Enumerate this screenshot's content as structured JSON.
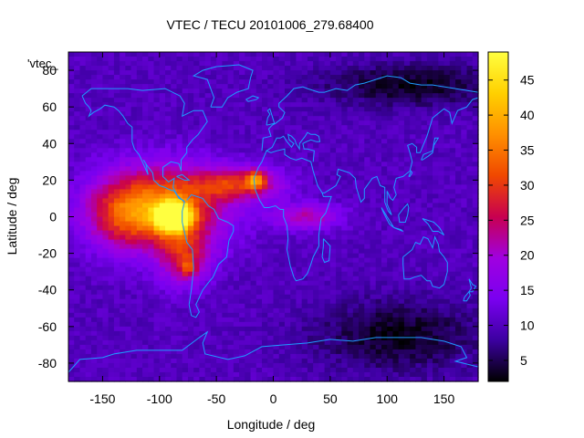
{
  "chart_data": {
    "type": "heatmap",
    "title": "VTEC / TECU 20101006_279.68400",
    "xlabel": "Longitude / deg",
    "ylabel": "Latitude / deg",
    "legend_label": "'vtec_",
    "legend_position": "top-left",
    "xlim": [
      -180,
      180
    ],
    "ylim": [
      -90,
      90
    ],
    "xticks": [
      -150,
      -100,
      -50,
      0,
      50,
      100,
      150
    ],
    "yticks": [
      -80,
      -60,
      -40,
      -20,
      0,
      20,
      40,
      60,
      80
    ],
    "colorbar": {
      "range": [
        2,
        49
      ],
      "ticks": [
        5,
        10,
        15,
        20,
        25,
        30,
        35,
        40,
        45
      ],
      "palette": [
        "#000000",
        "#3c00a0",
        "#7a00f0",
        "#a000e0",
        "#c80050",
        "#f04800",
        "#ff9000",
        "#ffd000",
        "#ffff40"
      ]
    },
    "grid": {
      "lon_step": 5,
      "lat_step": 2.5,
      "background": 10,
      "features": [
        {
          "name": "south-america-core-peak",
          "lon": -88,
          "lat": 0,
          "peak": 47,
          "rx": 14,
          "ry": 7
        },
        {
          "name": "south-america-crest",
          "lon": -100,
          "lat": 5,
          "peak": 26,
          "rx": 55,
          "ry": 22
        },
        {
          "name": "southern-arm",
          "lon": -78,
          "lat": -22,
          "peak": 14,
          "rx": 22,
          "ry": 16
        },
        {
          "name": "south-cone-spot",
          "lon": -75,
          "lat": -28,
          "peak": 8,
          "rx": 8,
          "ry": 5
        },
        {
          "name": "atlantic-band",
          "lon": -30,
          "lat": 18,
          "peak": 17,
          "rx": 38,
          "ry": 9
        },
        {
          "name": "west-africa-spot",
          "lon": -15,
          "lat": 20,
          "peak": 15,
          "rx": 8,
          "ry": 5
        },
        {
          "name": "africa-equator-tail",
          "lon": 30,
          "lat": 0,
          "peak": 12,
          "rx": 30,
          "ry": 7
        },
        {
          "name": "pacific-extension",
          "lon": -135,
          "lat": 0,
          "peak": 8,
          "rx": 30,
          "ry": 18
        },
        {
          "name": "polar-north-depression",
          "lon": 120,
          "lat": 72,
          "peak": -7,
          "rx": 80,
          "ry": 12
        },
        {
          "name": "polar-south-depression",
          "lon": 110,
          "lat": -65,
          "peak": -7,
          "rx": 75,
          "ry": 20
        }
      ]
    }
  }
}
